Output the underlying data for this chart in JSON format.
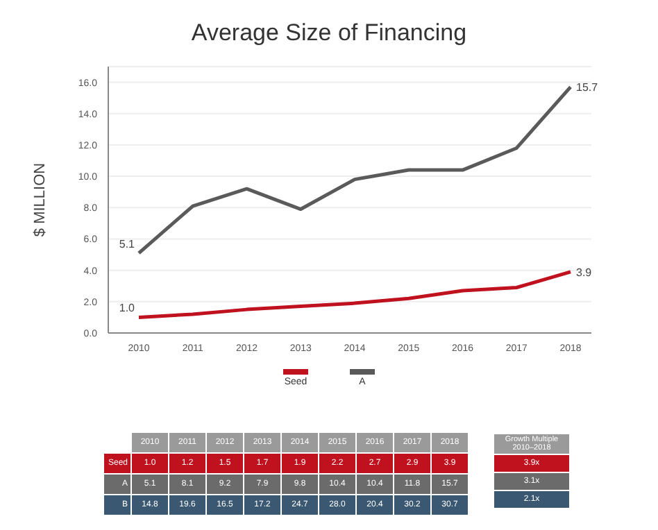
{
  "chart_data": [
    {
      "type": "line",
      "title": "Average Size of Financing",
      "ylabel": "$ MILLION",
      "categories": [
        "2010",
        "2011",
        "2012",
        "2013",
        "2014",
        "2015",
        "2016",
        "2017",
        "2018"
      ],
      "series": [
        {
          "name": "Seed",
          "color": "#c0111f",
          "values": [
            1.0,
            1.2,
            1.5,
            1.7,
            1.9,
            2.2,
            2.7,
            2.9,
            3.9
          ],
          "value_labels": [
            "1.0",
            null,
            null,
            null,
            null,
            null,
            null,
            null,
            "3.9"
          ]
        },
        {
          "name": "A",
          "color": "#5a5a5a",
          "values": [
            5.1,
            8.1,
            9.2,
            7.9,
            9.8,
            10.4,
            10.4,
            11.8,
            15.7
          ],
          "value_labels": [
            "5.1",
            null,
            null,
            null,
            null,
            null,
            null,
            null,
            "15.7"
          ]
        }
      ],
      "ylim": [
        0,
        17
      ],
      "yticks": [
        {
          "value": 0,
          "label": "0.0"
        },
        {
          "value": 2,
          "label": "2.0"
        },
        {
          "value": 4,
          "label": "4.0"
        },
        {
          "value": 6,
          "label": "6.0"
        },
        {
          "value": 8,
          "label": "8.0"
        },
        {
          "value": 10,
          "label": "10.0"
        },
        {
          "value": 12,
          "label": "12.0"
        },
        {
          "value": 14,
          "label": "14.0"
        },
        {
          "value": 16,
          "label": "16.0"
        }
      ],
      "grid": "y",
      "legend": "bottom",
      "marker": "none",
      "line_style": "solid"
    },
    {
      "type": "heatmap",
      "categories": [
        "2010",
        "2011",
        "2012",
        "2013",
        "2014",
        "2015",
        "2016",
        "2017",
        "2018"
      ],
      "y_categories": [
        "Seed",
        "A",
        "B"
      ],
      "colors": [
        "#c0111f",
        "#6b6b6b",
        "#3b5872"
      ],
      "cells": [
        [
          1.0,
          1.2,
          1.5,
          1.7,
          1.9,
          2.2,
          2.7,
          2.9,
          3.9
        ],
        [
          5.1,
          8.1,
          9.2,
          7.9,
          9.8,
          10.4,
          10.4,
          11.8,
          15.7
        ],
        [
          14.8,
          19.6,
          16.5,
          17.2,
          24.7,
          28.0,
          20.4,
          30.2,
          30.7
        ]
      ],
      "cell_labels": [
        [
          "1.0",
          "1.2",
          "1.5",
          "1.7",
          "1.9",
          "2.2",
          "2.7",
          "2.9",
          "3.9"
        ],
        [
          "5.1",
          "8.1",
          "9.2",
          "7.9",
          "9.8",
          "10.4",
          "10.4",
          "11.8",
          "15.7"
        ],
        [
          "14.8",
          "19.6",
          "16.5",
          "17.2",
          "24.7",
          "28.0",
          "20.4",
          "30.2",
          "30.7"
        ]
      ]
    },
    {
      "type": "other",
      "title": "Growth Multiple",
      "subtitle": "2010–2018",
      "values": [
        3.9,
        3.1,
        2.1
      ],
      "value_labels": [
        "3.9x",
        "3.1x",
        "2.1x"
      ],
      "colors": [
        "#c0111f",
        "#6b6b6b",
        "#3b5872"
      ]
    }
  ]
}
